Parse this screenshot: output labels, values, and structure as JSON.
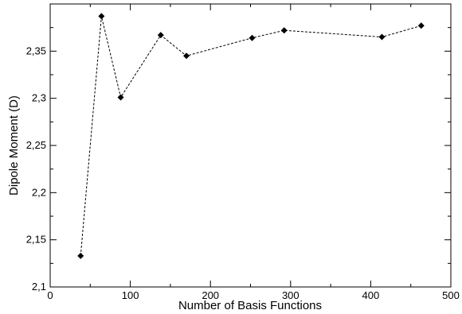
{
  "chart_data": {
    "type": "line",
    "title": "",
    "xlabel": "Number of Basis Functions",
    "ylabel": "Dipole Moment (D)",
    "xlim": [
      0,
      500
    ],
    "ylim": [
      2.1,
      2.4
    ],
    "x_ticks": [
      0,
      100,
      200,
      300,
      400,
      500
    ],
    "x_tick_labels": [
      "0",
      "100",
      "200",
      "300",
      "400",
      "500"
    ],
    "y_ticks": [
      2.1,
      2.15,
      2.2,
      2.25,
      2.3,
      2.35
    ],
    "y_tick_labels": [
      "2,1",
      "2,15",
      "2,2",
      "2,25",
      "2,3",
      "2,35"
    ],
    "grid": false,
    "legend": "none",
    "line_style": "dashed",
    "marker": "diamond",
    "color": "#000000",
    "series": [
      {
        "x": [
          38,
          64,
          88,
          138,
          170,
          252,
          292,
          414,
          463
        ],
        "y": [
          2.133,
          2.387,
          2.301,
          2.367,
          2.345,
          2.364,
          2.372,
          2.365,
          2.377
        ]
      }
    ]
  }
}
